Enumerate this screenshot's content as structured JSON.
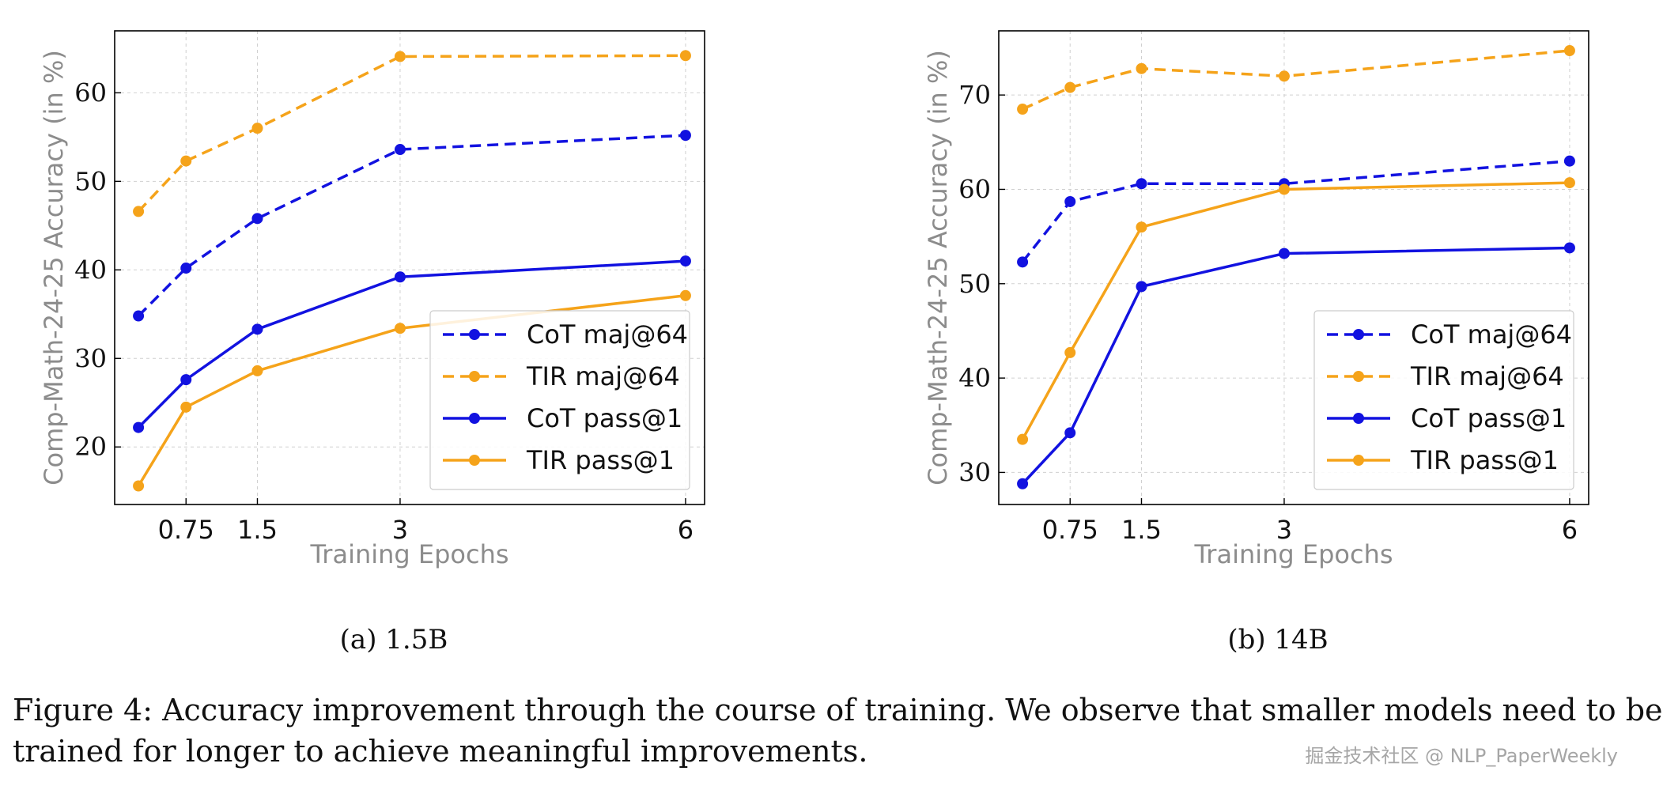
{
  "chart_data": [
    {
      "type": "line",
      "subcaption": "(a) 1.5B",
      "xlabel": "Training Epochs",
      "ylabel": "Comp-Math-24-25 Accuracy (in %)",
      "x": [
        0.25,
        0.75,
        1.5,
        3,
        6
      ],
      "xticks": [
        0.75,
        1.5,
        3,
        6
      ],
      "xtick_labels": [
        "0.75",
        "1.5",
        "3",
        "6"
      ],
      "yticks": [
        20,
        30,
        40,
        50,
        60
      ],
      "ylim": [
        13.5,
        67
      ],
      "grid": true,
      "legend": "lower-right",
      "series": [
        {
          "name": "CoT maj@64",
          "style": "dashed",
          "color": "#1212e0",
          "values": [
            34.8,
            40.2,
            45.8,
            53.6,
            55.2
          ]
        },
        {
          "name": "TIR maj@64",
          "style": "dashed",
          "color": "#f5a31a",
          "values": [
            46.6,
            52.3,
            56.0,
            64.1,
            64.2
          ]
        },
        {
          "name": "CoT pass@1",
          "style": "solid",
          "color": "#1212e0",
          "values": [
            22.2,
            27.6,
            33.3,
            39.2,
            41.0
          ]
        },
        {
          "name": "TIR pass@1",
          "style": "solid",
          "color": "#f5a31a",
          "values": [
            15.6,
            24.5,
            28.6,
            33.4,
            37.1
          ]
        }
      ]
    },
    {
      "type": "line",
      "subcaption": "(b) 14B",
      "xlabel": "Training Epochs",
      "ylabel": "Comp-Math-24-25 Accuracy (in %)",
      "x": [
        0.25,
        0.75,
        1.5,
        3,
        6
      ],
      "xticks": [
        0.75,
        1.5,
        3,
        6
      ],
      "xtick_labels": [
        "0.75",
        "1.5",
        "3",
        "6"
      ],
      "yticks": [
        30,
        40,
        50,
        60,
        70
      ],
      "ylim": [
        26.6,
        76.8
      ],
      "grid": true,
      "legend": "lower-right",
      "series": [
        {
          "name": "CoT maj@64",
          "style": "dashed",
          "color": "#1212e0",
          "values": [
            52.3,
            58.7,
            60.6,
            60.6,
            63.0
          ]
        },
        {
          "name": "TIR maj@64",
          "style": "dashed",
          "color": "#f5a31a",
          "values": [
            68.5,
            70.8,
            72.8,
            72.0,
            74.7
          ]
        },
        {
          "name": "CoT pass@1",
          "style": "solid",
          "color": "#1212e0",
          "values": [
            28.8,
            34.2,
            49.7,
            53.2,
            53.8
          ]
        },
        {
          "name": "TIR pass@1",
          "style": "solid",
          "color": "#f5a31a",
          "values": [
            33.5,
            42.7,
            56.0,
            60.0,
            60.7
          ]
        }
      ]
    }
  ],
  "caption": {
    "line1": "Figure 4: Accuracy improvement through the course of training. We observe that smaller models need to be",
    "line2": "trained for longer to achieve meaningful improvements."
  },
  "watermark": "掘金技术社区 @ NLP_PaperWeekly"
}
